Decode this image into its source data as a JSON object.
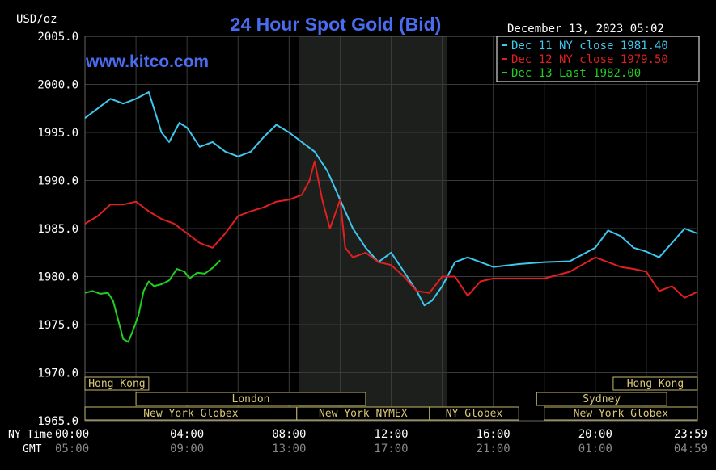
{
  "chart_data": {
    "type": "line",
    "title": "24 Hour Spot Gold (Bid)",
    "ylabel": "USD/oz",
    "watermark": "www.kitco.com",
    "timestamp": "December 13, 2023 05:02",
    "ylim": [
      1965,
      2005
    ],
    "xlim": [
      0,
      24
    ],
    "grid": true,
    "y_ticks": [
      "2005.0",
      "2000.0",
      "1995.0",
      "1990.0",
      "1985.0",
      "1980.0",
      "1975.0",
      "1970.0",
      "1965.0"
    ],
    "x_row_labels": {
      "ny": "NY Time",
      "gmt": "GMT"
    },
    "x_ticks_ny": [
      "00:00",
      "04:00",
      "08:00",
      "12:00",
      "16:00",
      "20:00",
      "23:59"
    ],
    "x_ticks_gmt": [
      "05:00",
      "09:00",
      "13:00",
      "17:00",
      "21:00",
      "01:00",
      "04:59"
    ],
    "shaded_session": [
      8.4,
      14.2
    ],
    "legend_position": "top-right",
    "series": [
      {
        "name": "Dec 11 NY close",
        "label": "Dec 11 NY close 1981.40",
        "color": "#3ec8f0",
        "x": [
          0,
          0.5,
          1,
          1.5,
          2,
          2.5,
          3,
          3.3,
          3.7,
          4,
          4.5,
          5,
          5.5,
          6,
          6.5,
          7,
          7.5,
          8,
          8.5,
          9,
          9.5,
          10,
          10.5,
          11,
          11.5,
          12,
          12.5,
          13,
          13.3,
          13.6,
          14,
          14.5,
          15,
          16,
          17,
          18,
          19,
          20,
          20.5,
          21,
          21.5,
          22,
          22.5,
          23,
          23.5,
          23.99
        ],
        "y": [
          1996.5,
          1997.5,
          1998.5,
          1998,
          1998.5,
          1999.2,
          1995,
          1994,
          1996,
          1995.5,
          1993.5,
          1994,
          1993,
          1992.5,
          1993,
          1994.5,
          1995.8,
          1995,
          1994,
          1993,
          1991,
          1988,
          1985,
          1983,
          1981.5,
          1982.5,
          1980.5,
          1978.5,
          1977,
          1977.5,
          1979,
          1981.5,
          1982,
          1981,
          1981.3,
          1981.5,
          1981.6,
          1983,
          1984.8,
          1984.2,
          1983,
          1982.6,
          1982,
          1983.5,
          1985,
          1984.5
        ]
      },
      {
        "name": "Dec 12 NY close",
        "label": "Dec 12 NY close 1979.50",
        "color": "#e02020",
        "x": [
          0,
          0.5,
          1,
          1.5,
          2,
          2.5,
          3,
          3.5,
          4,
          4.5,
          5,
          5.5,
          6,
          6.5,
          7,
          7.5,
          8,
          8.5,
          8.8,
          9,
          9.3,
          9.6,
          10,
          10.2,
          10.5,
          11,
          11.5,
          12,
          12.5,
          13,
          13.5,
          14,
          14.5,
          15,
          15.5,
          16,
          17,
          18,
          19,
          20,
          21,
          21.5,
          22,
          22.5,
          23,
          23.5,
          23.99
        ],
        "y": [
          1985.5,
          1986.3,
          1987.5,
          1987.5,
          1987.8,
          1986.8,
          1986,
          1985.5,
          1984.5,
          1983.5,
          1983,
          1984.5,
          1986.3,
          1986.8,
          1987.2,
          1987.8,
          1988,
          1988.5,
          1990,
          1992,
          1988,
          1985,
          1988,
          1983,
          1982,
          1982.5,
          1981.5,
          1981.2,
          1980,
          1978.5,
          1978.3,
          1980,
          1980,
          1978,
          1979.5,
          1979.8,
          1979.8,
          1979.8,
          1980.5,
          1982,
          1981,
          1980.8,
          1980.5,
          1978.5,
          1979,
          1977.8,
          1978.4
        ]
      },
      {
        "name": "Dec 13 Last",
        "label": "Dec 13 Last 1982.00",
        "color": "#20d020",
        "x": [
          0,
          0.3,
          0.6,
          0.9,
          1.1,
          1.3,
          1.5,
          1.7,
          1.9,
          2.1,
          2.3,
          2.5,
          2.7,
          3,
          3.3,
          3.6,
          3.9,
          4.1,
          4.4,
          4.7,
          5,
          5.3
        ],
        "y": [
          1978.3,
          1978.5,
          1978.2,
          1978.3,
          1977.5,
          1975.5,
          1973.5,
          1973.2,
          1974.5,
          1976,
          1978.5,
          1979.5,
          1979,
          1979.2,
          1979.6,
          1980.8,
          1980.5,
          1979.8,
          1980.4,
          1980.3,
          1980.9,
          1981.7
        ]
      }
    ],
    "sessions": [
      {
        "name": "Hong Kong",
        "start": 0,
        "end": 2.5,
        "row": 0
      },
      {
        "name": "Hong Kong",
        "start": 20.7,
        "end": 24,
        "row": 0
      },
      {
        "name": "London",
        "start": 2,
        "end": 11,
        "row": 1
      },
      {
        "name": "Sydney",
        "start": 17.7,
        "end": 22.8,
        "row": 1
      },
      {
        "name": "New York Globex",
        "start": 0,
        "end": 8.3,
        "row": 2
      },
      {
        "name": "New York NYMEX",
        "start": 8.3,
        "end": 13.5,
        "row": 2
      },
      {
        "name": "NY Globex",
        "start": 13.5,
        "end": 17,
        "row": 2
      },
      {
        "name": "New York Globex",
        "start": 18,
        "end": 24,
        "row": 2
      }
    ]
  }
}
